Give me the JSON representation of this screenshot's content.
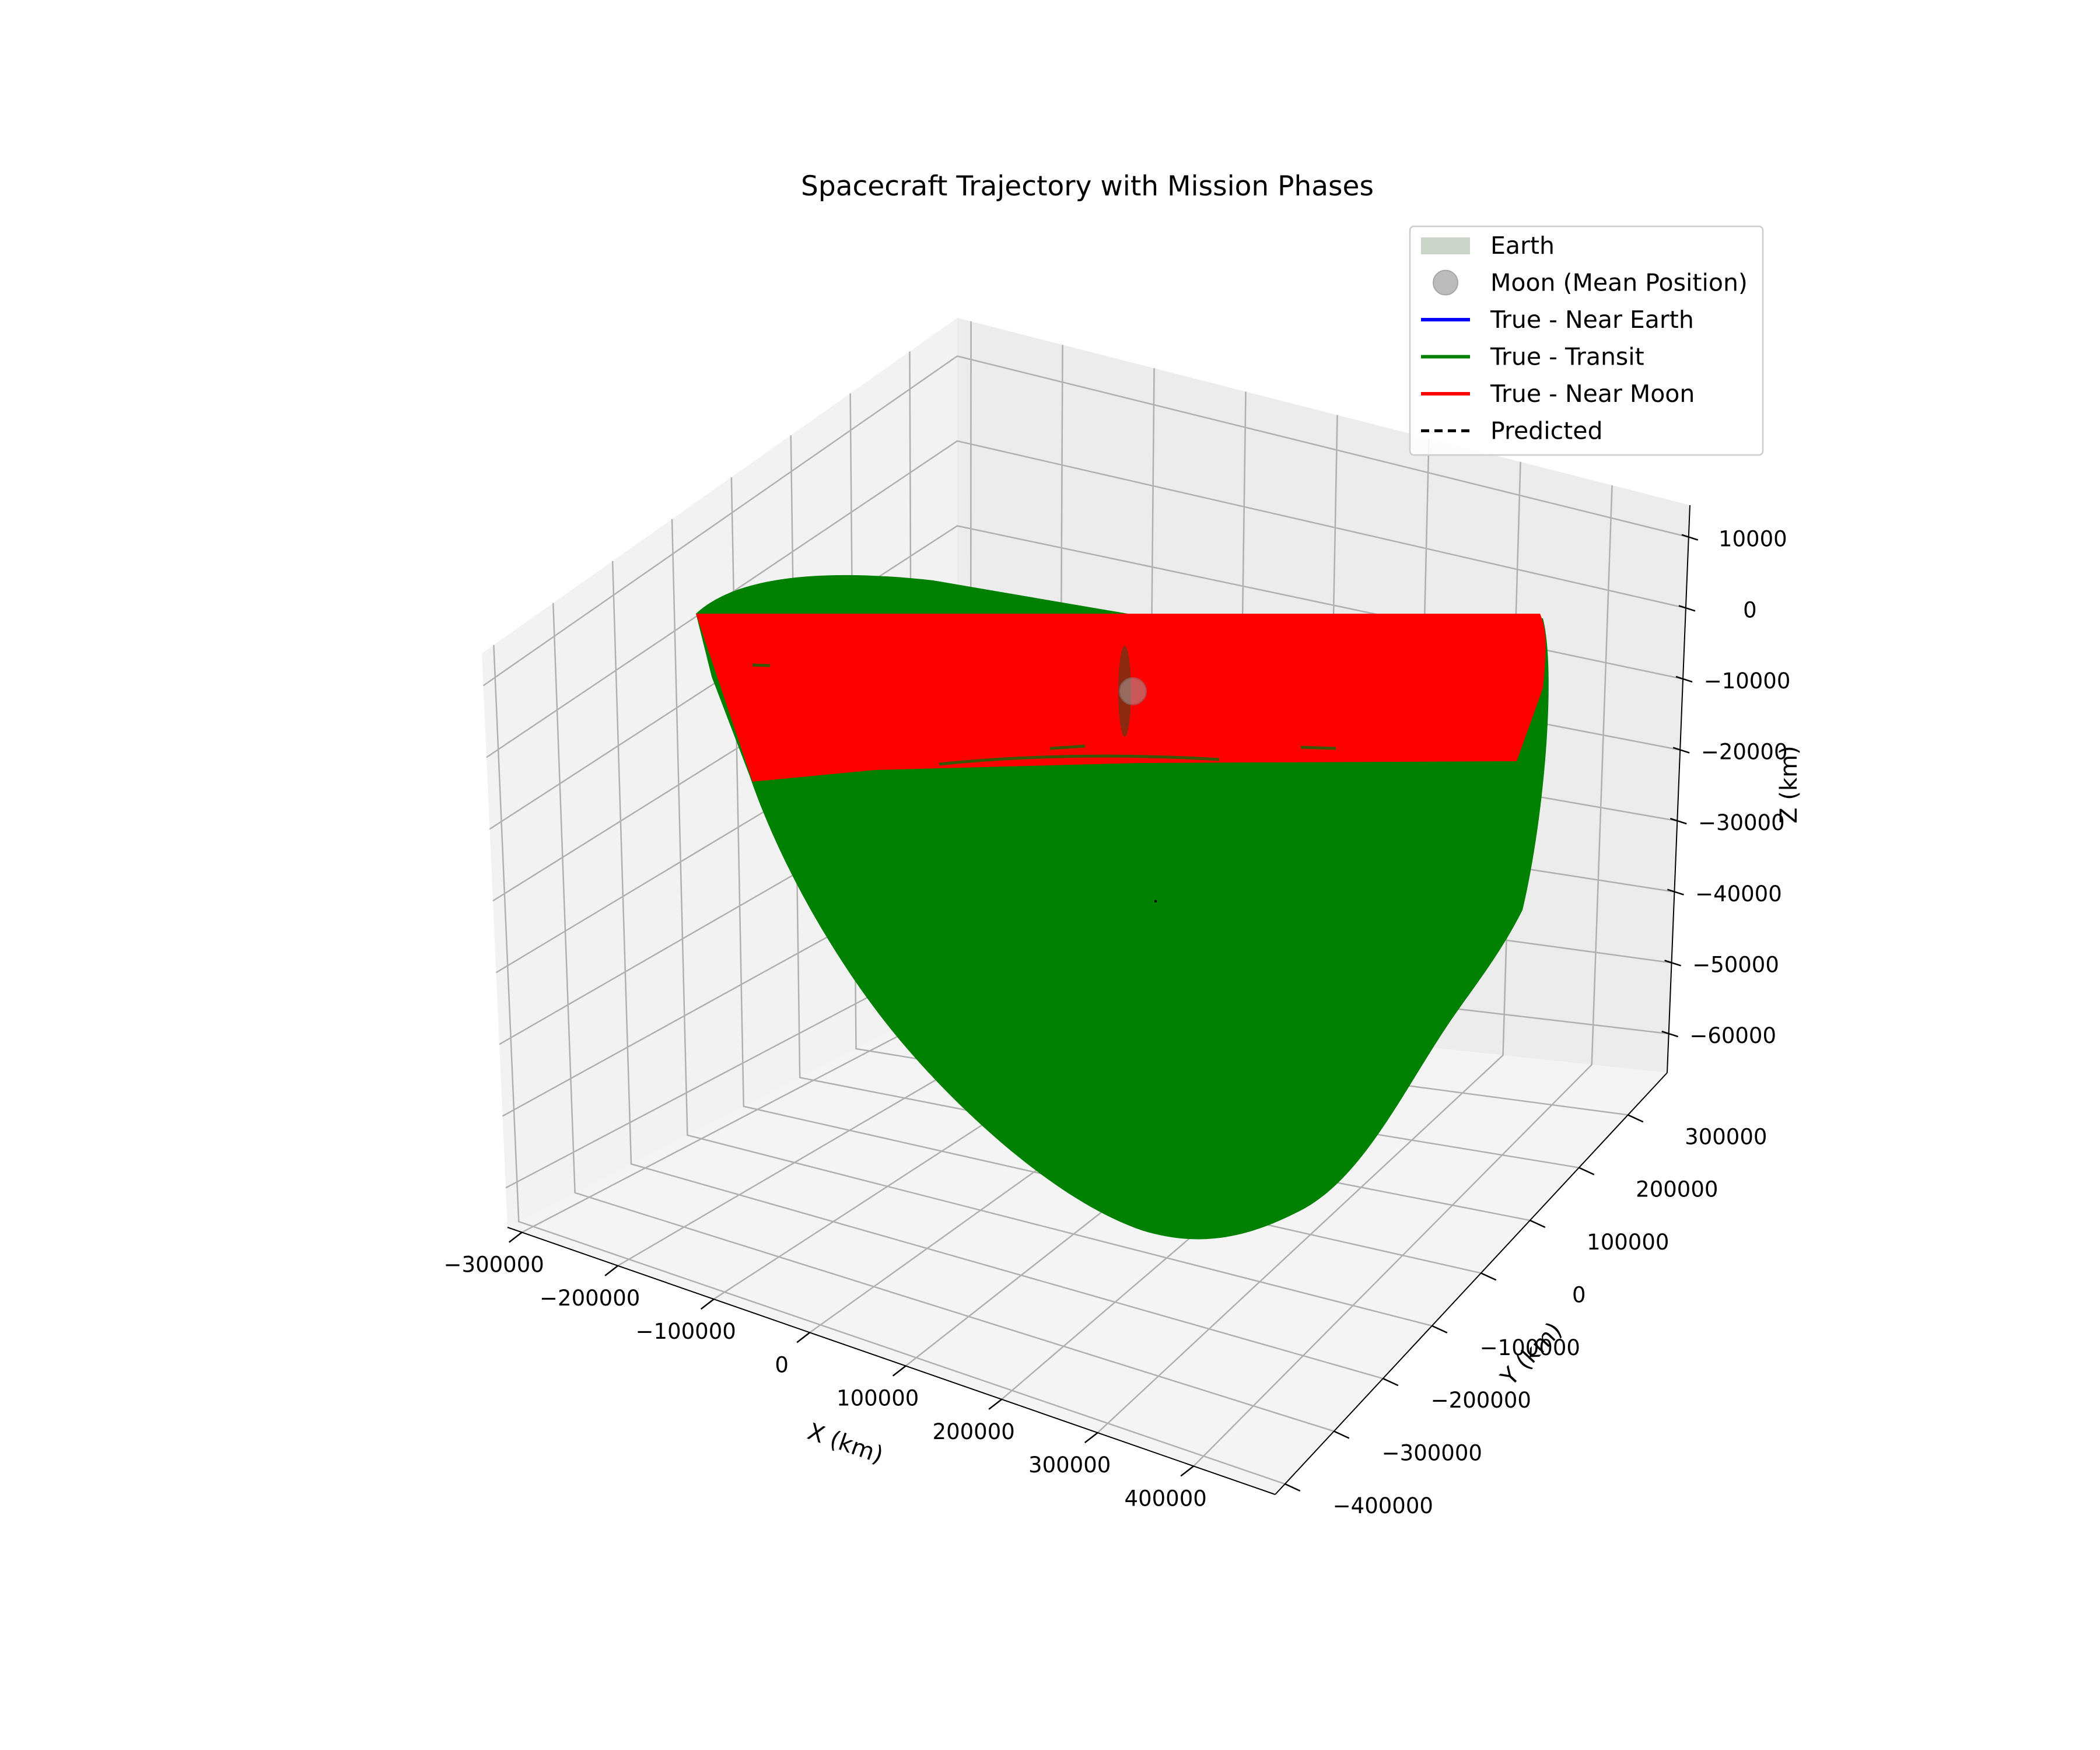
{
  "chart_data": {
    "type": "3d-line",
    "title": "Spacecraft Trajectory with Mission Phases",
    "axes": {
      "x": {
        "label": "X (km)",
        "ticks": [
          "−300000",
          "−200000",
          "−100000",
          "0",
          "100000",
          "200000",
          "300000",
          "400000"
        ]
      },
      "y": {
        "label": "Y (km)",
        "ticks": [
          "−400000",
          "−300000",
          "−200000",
          "−100000",
          "0",
          "100000",
          "200000",
          "300000"
        ]
      },
      "z": {
        "label": "Z (km)",
        "ticks": [
          "10000",
          "0",
          "−10000",
          "−20000",
          "−30000",
          "−40000",
          "−50000",
          "−60000"
        ]
      }
    },
    "grid": true,
    "legend_position": "top-right",
    "legend": [
      {
        "name": "Earth",
        "kind": "patch",
        "color": "#c9d6c7"
      },
      {
        "name": "Moon (Mean Position)",
        "kind": "marker",
        "color": "#a0a0a0"
      },
      {
        "name": "True - Near Earth",
        "kind": "line",
        "color": "#0000ff"
      },
      {
        "name": "True - Transit",
        "kind": "line",
        "color": "#008000"
      },
      {
        "name": "True - Near Moon",
        "kind": "line",
        "color": "#ff0000"
      },
      {
        "name": "Predicted",
        "kind": "dashed",
        "color": "#000000"
      }
    ],
    "series": [
      {
        "name": "True - Transit",
        "color": "#008000",
        "rendered_as": "dense filled band"
      },
      {
        "name": "True - Near Moon",
        "color": "#ff0000",
        "rendered_as": "dense filled band"
      }
    ],
    "moon_marker": {
      "name": "Moon (Mean Position)",
      "color": "#a0a0a0"
    },
    "colors": {
      "pane_left": "#f2f2f2",
      "pane_right": "#ececec",
      "pane_floor": "#f4f4f4",
      "grid": "#b0b0b0",
      "near_moon_inner": "#8b2a10"
    }
  }
}
